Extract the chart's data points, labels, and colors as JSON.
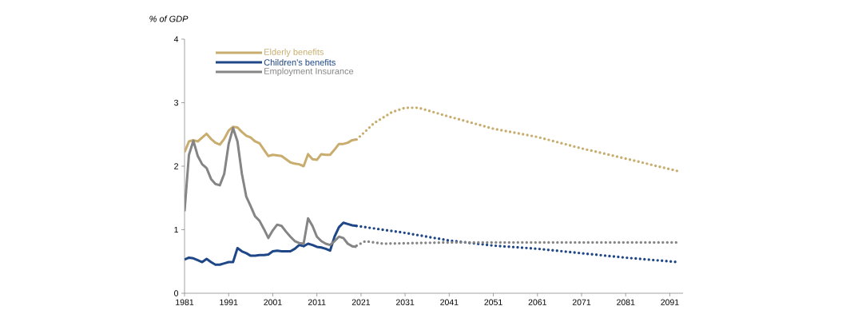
{
  "chart_data": {
    "type": "line",
    "ylabel": "% of GDP",
    "series": [
      {
        "name": "Elderly benefits",
        "color": "#c8ad6e",
        "line_style": "solid",
        "x": [
          1981,
          1982,
          1983,
          1984,
          1985,
          1986,
          1987,
          1988,
          1989,
          1990,
          1991,
          1992,
          1993,
          1994,
          1995,
          1996,
          1997,
          1998,
          1999,
          2000,
          2001,
          2002,
          2003,
          2004,
          2005,
          2006,
          2007,
          2008,
          2009,
          2010,
          2011,
          2012,
          2013,
          2014,
          2015,
          2016,
          2017,
          2018,
          2019,
          2020
        ],
        "values": [
          2.22,
          2.39,
          2.41,
          2.39,
          2.45,
          2.51,
          2.43,
          2.37,
          2.34,
          2.43,
          2.56,
          2.62,
          2.61,
          2.54,
          2.48,
          2.45,
          2.39,
          2.36,
          2.26,
          2.16,
          2.18,
          2.17,
          2.16,
          2.11,
          2.06,
          2.04,
          2.03,
          2.0,
          2.19,
          2.11,
          2.1,
          2.19,
          2.18,
          2.18,
          2.26,
          2.35,
          2.35,
          2.37,
          2.41,
          2.42
        ]
      },
      {
        "name": "Children's benefits",
        "color": "#1f4788",
        "line_style": "solid",
        "x": [
          1981,
          1982,
          1983,
          1984,
          1985,
          1986,
          1987,
          1988,
          1989,
          1990,
          1991,
          1992,
          1993,
          1994,
          1995,
          1996,
          1997,
          1998,
          1999,
          2000,
          2001,
          2002,
          2003,
          2004,
          2005,
          2006,
          2007,
          2008,
          2009,
          2010,
          2011,
          2012,
          2013,
          2014,
          2015,
          2016,
          2017,
          2018,
          2019,
          2020
        ],
        "values": [
          0.53,
          0.56,
          0.55,
          0.52,
          0.49,
          0.54,
          0.49,
          0.45,
          0.45,
          0.47,
          0.49,
          0.49,
          0.71,
          0.66,
          0.63,
          0.59,
          0.59,
          0.6,
          0.6,
          0.61,
          0.66,
          0.67,
          0.66,
          0.66,
          0.66,
          0.7,
          0.76,
          0.74,
          0.78,
          0.76,
          0.73,
          0.72,
          0.7,
          0.67,
          0.89,
          1.04,
          1.11,
          1.09,
          1.07,
          1.06
        ]
      },
      {
        "name": "Employment Insurance",
        "color": "#858585",
        "line_style": "solid",
        "x": [
          1981,
          1982,
          1983,
          1984,
          1985,
          1986,
          1987,
          1988,
          1989,
          1990,
          1991,
          1992,
          1993,
          1994,
          1995,
          1996,
          1997,
          1998,
          1999,
          2000,
          2001,
          2002,
          2003,
          2004,
          2005,
          2006,
          2007,
          2008,
          2009,
          2010,
          2011,
          2012,
          2013,
          2014,
          2015,
          2016,
          2017,
          2018,
          2019,
          2020
        ],
        "values": [
          1.29,
          2.18,
          2.4,
          2.16,
          2.03,
          1.97,
          1.8,
          1.72,
          1.7,
          1.88,
          2.35,
          2.6,
          2.39,
          1.88,
          1.52,
          1.37,
          1.21,
          1.14,
          1.01,
          0.87,
          0.99,
          1.08,
          1.06,
          0.97,
          0.89,
          0.82,
          0.79,
          0.78,
          1.18,
          1.06,
          0.89,
          0.82,
          0.78,
          0.76,
          0.82,
          0.89,
          0.87,
          0.78,
          0.74,
          0.73
        ]
      },
      {
        "color": "#c8ad6e",
        "line_style": "dotted",
        "x": [
          2020,
          2024,
          2028,
          2031,
          2034,
          2041,
          2051,
          2061,
          2071,
          2081,
          2093
        ],
        "values": [
          2.42,
          2.68,
          2.85,
          2.92,
          2.92,
          2.78,
          2.59,
          2.46,
          2.28,
          2.12,
          1.92
        ]
      },
      {
        "color": "#1f4788",
        "line_style": "dotted",
        "x": [
          2020,
          2031,
          2041,
          2051,
          2061,
          2071,
          2081,
          2093
        ],
        "values": [
          1.06,
          0.95,
          0.83,
          0.75,
          0.7,
          0.63,
          0.56,
          0.49
        ]
      },
      {
        "color": "#858585",
        "line_style": "dotted",
        "x": [
          2020,
          2022,
          2026,
          2041,
          2093
        ],
        "values": [
          0.75,
          0.82,
          0.78,
          0.8,
          0.8
        ]
      }
    ],
    "xlim": [
      1981,
      2094
    ],
    "xticks": [
      1981,
      1991,
      2001,
      2011,
      2021,
      2031,
      2041,
      2051,
      2061,
      2071,
      2081,
      2091
    ],
    "ylim": [
      0,
      4
    ],
    "yticks": [
      0,
      1,
      2,
      3,
      4
    ],
    "grid": false,
    "legend": "top left"
  }
}
